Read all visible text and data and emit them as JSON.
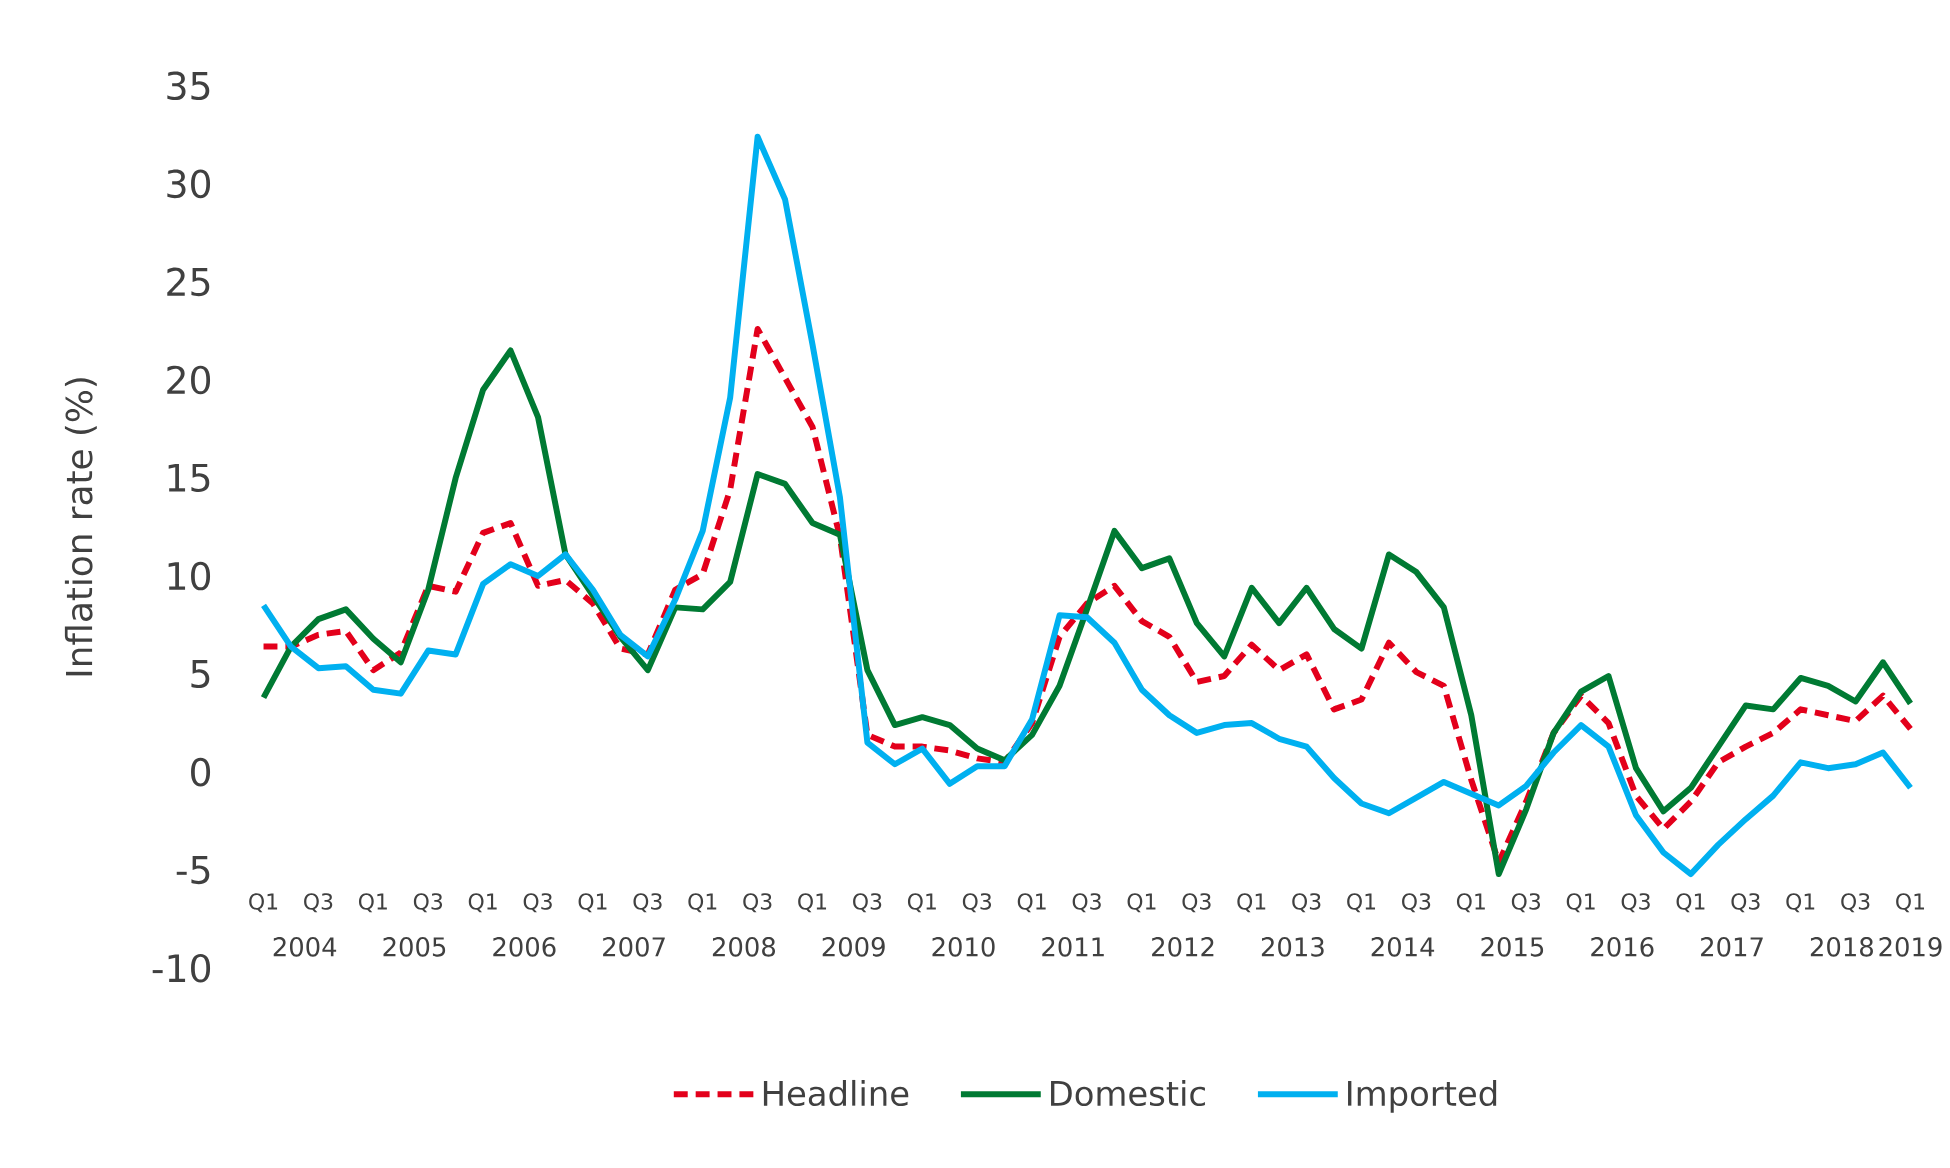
{
  "chart_data": {
    "type": "line",
    "ylabel": "Inflation rate (%)",
    "categories": [
      "Q1",
      null,
      "Q3",
      null,
      "Q1",
      null,
      "Q3",
      null,
      "Q1",
      null,
      "Q3",
      null,
      "Q1",
      null,
      "Q3",
      null,
      "Q1",
      null,
      "Q3",
      null,
      "Q1",
      null,
      "Q3",
      null,
      "Q1",
      null,
      "Q3",
      null,
      "Q1",
      null,
      "Q3",
      null,
      "Q1",
      null,
      "Q3",
      null,
      "Q1",
      null,
      "Q3",
      null,
      "Q1",
      null,
      "Q3",
      null,
      "Q1",
      null,
      "Q3",
      null,
      "Q1",
      null,
      "Q3",
      null,
      "Q1",
      null,
      "Q3",
      null,
      "Q1",
      null,
      "Q3",
      null,
      "Q1"
    ],
    "series": [
      {
        "name": "Headline",
        "color": "#e3001b",
        "line_style": "dashed",
        "values": [
          6.4,
          6.4,
          7.0,
          7.2,
          5.2,
          6.1,
          9.5,
          9.2,
          12.2,
          12.7,
          9.5,
          9.8,
          8.6,
          6.3,
          6.0,
          9.3,
          10.1,
          14.4,
          22.6,
          20.1,
          17.6,
          12.0,
          1.9,
          1.3,
          1.3,
          1.1,
          0.7,
          0.5,
          2.5,
          6.9,
          8.6,
          9.5,
          7.7,
          6.9,
          4.6,
          4.9,
          6.5,
          5.2,
          6.0,
          3.2,
          3.7,
          6.6,
          5.1,
          4.4,
          -0.4,
          -4.6,
          -1.5,
          2.0,
          3.9,
          2.5,
          -1.2,
          -2.9,
          -1.5,
          0.5,
          1.3,
          2.0,
          3.2,
          2.9,
          2.6,
          3.9,
          2.2
        ]
      },
      {
        "name": "Domestic",
        "color": "#007a33",
        "line_style": "solid",
        "values": [
          3.8,
          6.4,
          7.8,
          8.3,
          6.8,
          5.6,
          9.3,
          15.0,
          19.5,
          21.5,
          18.1,
          11.1,
          9.0,
          6.9,
          5.2,
          8.4,
          8.3,
          9.7,
          15.2,
          14.7,
          12.7,
          12.1,
          5.2,
          2.4,
          2.8,
          2.4,
          1.2,
          0.6,
          1.9,
          4.4,
          8.3,
          12.3,
          10.4,
          10.9,
          7.6,
          5.9,
          9.4,
          7.6,
          9.4,
          7.3,
          6.3,
          11.1,
          10.2,
          8.4,
          2.9,
          -5.2,
          -1.9,
          2.0,
          4.1,
          4.9,
          0.2,
          -2.0,
          -0.8,
          1.3,
          3.4,
          3.2,
          4.8,
          4.4,
          3.6,
          5.6,
          3.5
        ]
      },
      {
        "name": "Imported",
        "color": "#00b0f0",
        "line_style": "solid",
        "values": [
          8.5,
          6.4,
          5.3,
          5.4,
          4.2,
          4.0,
          6.2,
          6.0,
          9.6,
          10.6,
          10.0,
          11.1,
          9.3,
          7.0,
          5.9,
          8.8,
          12.3,
          19.1,
          32.4,
          29.2,
          21.8,
          14.0,
          1.5,
          0.4,
          1.2,
          -0.6,
          0.3,
          0.3,
          2.7,
          8.0,
          7.9,
          6.6,
          4.2,
          2.9,
          2.0,
          2.4,
          2.5,
          1.7,
          1.3,
          -0.3,
          -1.6,
          -2.1,
          -1.3,
          -0.5,
          -1.1,
          -1.7,
          -0.7,
          1.0,
          2.4,
          1.3,
          -2.2,
          -4.1,
          -5.2,
          -3.7,
          -2.4,
          -1.2,
          0.5,
          0.2,
          0.4,
          1.0,
          -0.8
        ]
      }
    ],
    "annotations": [
      "2004",
      "2005",
      "2006",
      "2007",
      "2008",
      "2009",
      "2010",
      "2011",
      "2012",
      "2013",
      "2014",
      "2015",
      "2016",
      "2017",
      "2018",
      "2019"
    ],
    "ylim": [
      -10,
      35
    ],
    "yticks": [
      -10,
      -5,
      0,
      5,
      10,
      15,
      20,
      25,
      30,
      35
    ],
    "grid": false,
    "legend": "bottom"
  }
}
